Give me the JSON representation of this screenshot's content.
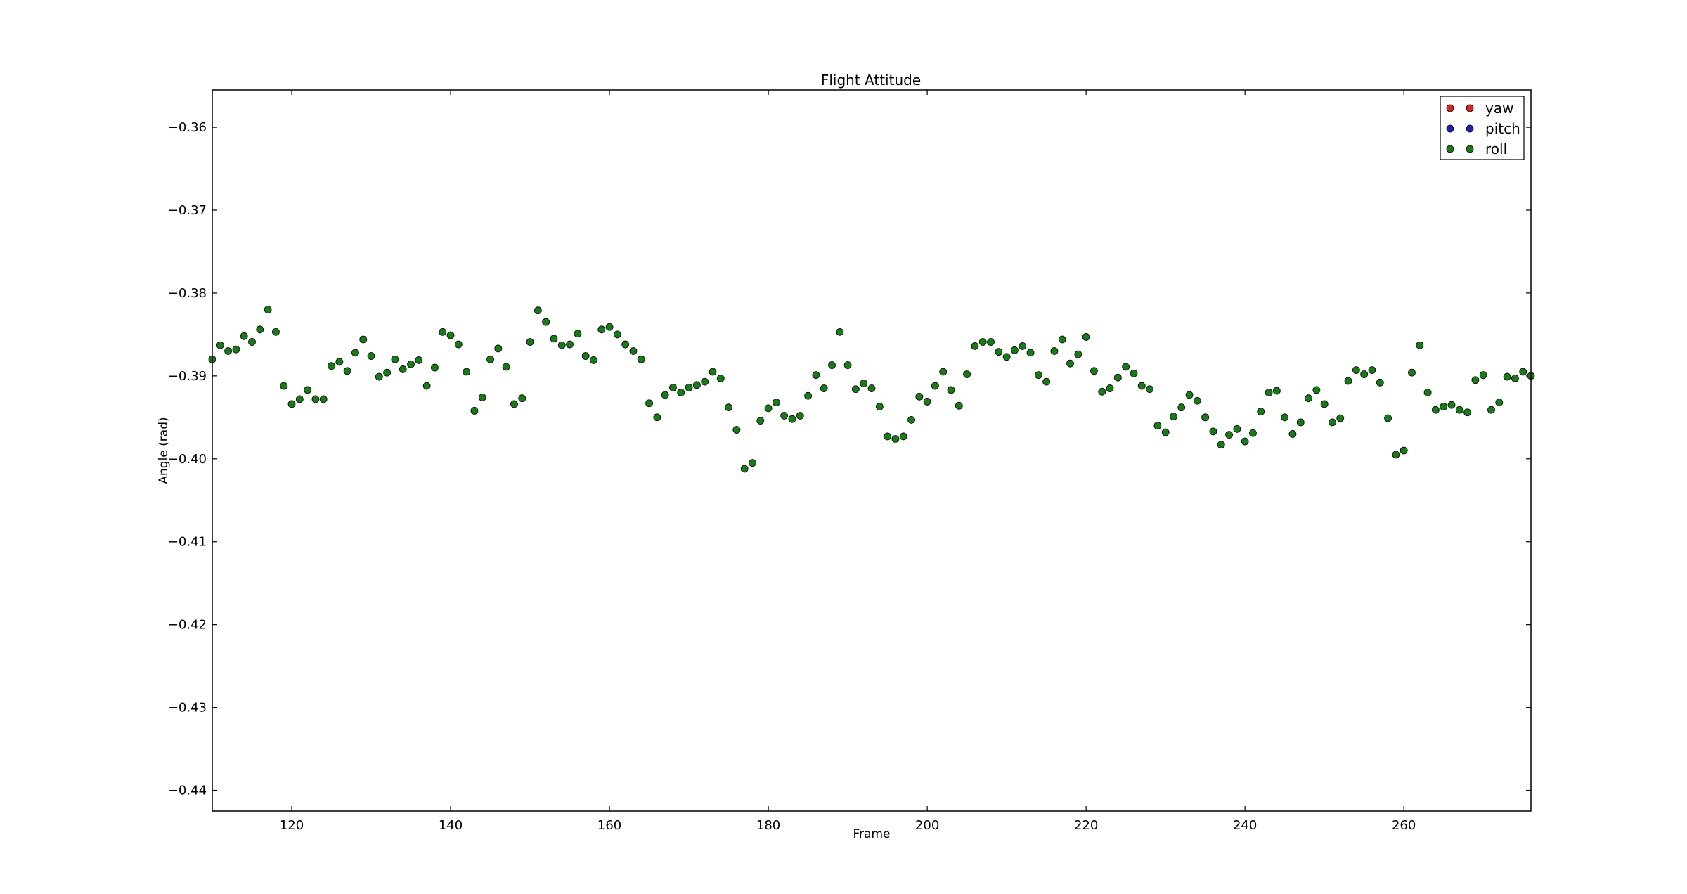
{
  "chart_data": {
    "type": "scatter",
    "title": "Flight Attitude",
    "xlabel": "Frame",
    "ylabel": "Angle (rad)",
    "xlim": [
      110,
      276
    ],
    "ylim": [
      -0.4425,
      -0.3555
    ],
    "xticks": [
      120,
      140,
      160,
      180,
      200,
      220,
      240,
      260
    ],
    "xtick_labels": [
      "120",
      "140",
      "160",
      "180",
      "200",
      "220",
      "240",
      "260"
    ],
    "yticks": [
      -0.36,
      -0.37,
      -0.38,
      -0.39,
      -0.4,
      -0.41,
      -0.42,
      -0.43,
      -0.44
    ],
    "ytick_labels": [
      "−0.36",
      "−0.37",
      "−0.38",
      "−0.39",
      "−0.40",
      "−0.41",
      "−0.42",
      "−0.43",
      "−0.44"
    ],
    "grid": false,
    "legend_position": "top-right",
    "series": [
      {
        "name": "yaw",
        "color": "#d62728",
        "x": [],
        "y": []
      },
      {
        "name": "pitch",
        "color": "#1f1fb4",
        "x": [],
        "y": []
      },
      {
        "name": "roll",
        "color": "#1a7a1a",
        "x": [
          110,
          111,
          112,
          113,
          114,
          115,
          116,
          117,
          118,
          119,
          120,
          121,
          122,
          123,
          124,
          125,
          126,
          127,
          128,
          129,
          130,
          131,
          132,
          133,
          134,
          135,
          136,
          137,
          138,
          139,
          140,
          141,
          142,
          143,
          144,
          145,
          146,
          147,
          148,
          149,
          150,
          151,
          152,
          153,
          154,
          155,
          156,
          157,
          158,
          159,
          160,
          161,
          162,
          163,
          164,
          165,
          166,
          167,
          168,
          169,
          170,
          171,
          172,
          173,
          174,
          175,
          176,
          177,
          178,
          179,
          180,
          181,
          182,
          183,
          184,
          185,
          186,
          187,
          188,
          189,
          190,
          191,
          192,
          193,
          194,
          195,
          196,
          197,
          198,
          199,
          200,
          201,
          202,
          203,
          204,
          205,
          206,
          207,
          208,
          209,
          210,
          211,
          212,
          213,
          214,
          215,
          216,
          217,
          218,
          219,
          220,
          221,
          222,
          223,
          224,
          225,
          226,
          227,
          228,
          229,
          230,
          231,
          232,
          233,
          234,
          235,
          236,
          237,
          238,
          239,
          240,
          241,
          242,
          243,
          244,
          245,
          246,
          247,
          248,
          249,
          250,
          251,
          252,
          253,
          254,
          255,
          256,
          257,
          258,
          259,
          260,
          261,
          262,
          263,
          264,
          265,
          266,
          267,
          268,
          269,
          270,
          271,
          272,
          273,
          274,
          275,
          276
        ],
        "y": [
          -0.388,
          -0.3863,
          -0.387,
          -0.3868,
          -0.3852,
          -0.3859,
          -0.3844,
          -0.382,
          -0.3847,
          -0.3912,
          -0.3934,
          -0.3928,
          -0.3917,
          -0.3928,
          -0.3928,
          -0.3888,
          -0.3883,
          -0.3894,
          -0.3872,
          -0.3856,
          -0.3876,
          -0.3901,
          -0.3896,
          -0.388,
          -0.3892,
          -0.3886,
          -0.3881,
          -0.3912,
          -0.389,
          -0.3847,
          -0.3851,
          -0.3862,
          -0.3895,
          -0.3942,
          -0.3926,
          -0.388,
          -0.3867,
          -0.3889,
          -0.3934,
          -0.3927,
          -0.3859,
          -0.3821,
          -0.3835,
          -0.3855,
          -0.3863,
          -0.3862,
          -0.3849,
          -0.3876,
          -0.3881,
          -0.3844,
          -0.3841,
          -0.385,
          -0.3862,
          -0.387,
          -0.388,
          -0.3933,
          -0.395,
          -0.3923,
          -0.3914,
          -0.392,
          -0.3914,
          -0.3911,
          -0.3907,
          -0.3895,
          -0.3903,
          -0.3938,
          -0.3965,
          -0.4012,
          -0.4005,
          -0.3954,
          -0.3939,
          -0.3932,
          -0.3948,
          -0.3952,
          -0.3948,
          -0.3924,
          -0.3899,
          -0.3915,
          -0.3887,
          -0.3847,
          -0.3887,
          -0.3916,
          -0.3909,
          -0.3915,
          -0.3937,
          -0.3973,
          -0.3976,
          -0.3973,
          -0.3953,
          -0.3925,
          -0.3931,
          -0.3912,
          -0.3895,
          -0.3917,
          -0.3936,
          -0.3898,
          -0.3864,
          -0.3859,
          -0.3859,
          -0.3871,
          -0.3877,
          -0.3869,
          -0.3864,
          -0.3872,
          -0.3899,
          -0.3907,
          -0.387,
          -0.3856,
          -0.3885,
          -0.3874,
          -0.3853,
          -0.3894,
          -0.3919,
          -0.3915,
          -0.3902,
          -0.3889,
          -0.3897,
          -0.3912,
          -0.3916,
          -0.396,
          -0.3968,
          -0.3949,
          -0.3938,
          -0.3923,
          -0.393,
          -0.395,
          -0.3967,
          -0.3983,
          -0.3971,
          -0.3964,
          -0.3979,
          -0.3969,
          -0.3943,
          -0.392,
          -0.3918,
          -0.395,
          -0.397,
          -0.3956,
          -0.3927,
          -0.3917,
          -0.3934,
          -0.3956,
          -0.3951,
          -0.3906,
          -0.3893,
          -0.3898,
          -0.3893,
          -0.3908,
          -0.3951,
          -0.3995,
          -0.399,
          -0.3896,
          -0.3863,
          -0.392,
          -0.3941,
          -0.3937,
          -0.3935,
          -0.3941,
          -0.3944,
          -0.3905,
          -0.3899,
          -0.3941,
          -0.3932,
          -0.3901,
          -0.3903,
          -0.3895,
          -0.39
        ]
      }
    ]
  }
}
